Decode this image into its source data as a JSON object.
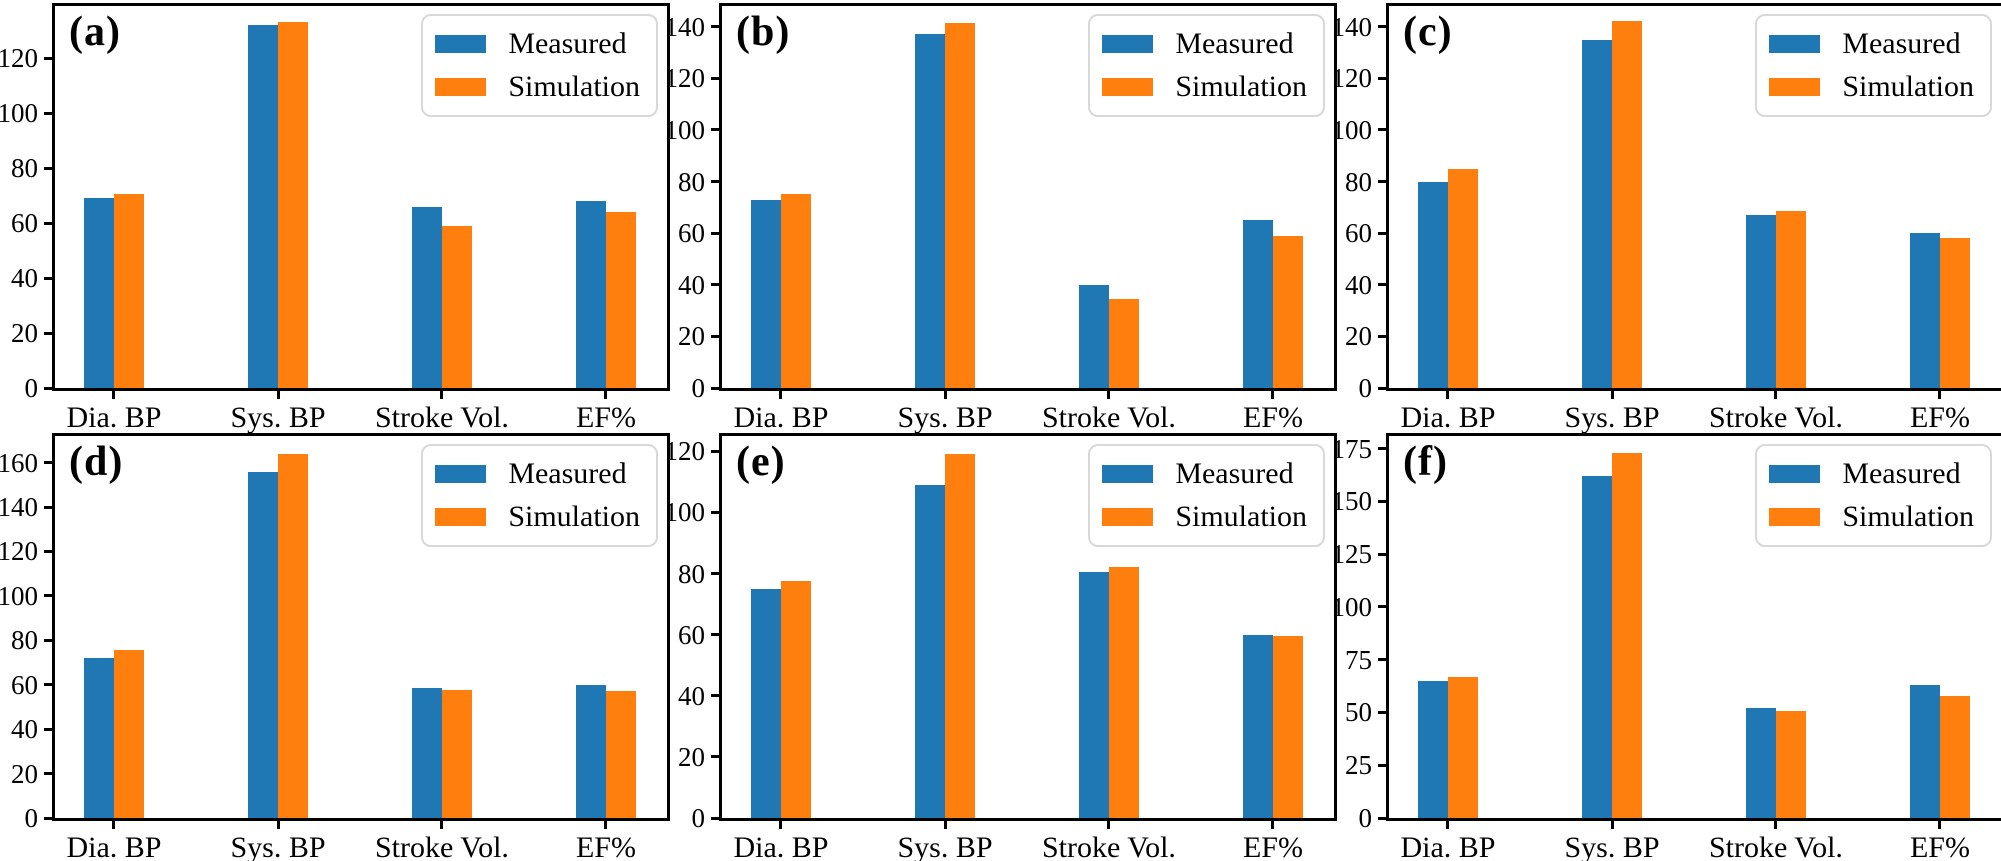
{
  "figure": {
    "background": "#ffffff",
    "series_labels": [
      "Measured",
      "Simulation"
    ],
    "series_colors": [
      "#1f77b4",
      "#ff7f0e"
    ],
    "legend_border_color": "#d8d8d8",
    "axis_color": "#000000"
  },
  "chart_data": [
    {
      "type": "bar",
      "label": "(a)",
      "categories": [
        "Dia. BP",
        "Sys. BP",
        "Stroke Vol.",
        "EF%"
      ],
      "series": [
        {
          "name": "Measured",
          "color": "#1f77b4",
          "values": [
            69,
            132,
            66,
            68
          ]
        },
        {
          "name": "Simulation",
          "color": "#ff7f0e",
          "values": [
            70.5,
            133,
            59,
            64
          ]
        }
      ],
      "yticks": [
        0,
        20,
        40,
        60,
        80,
        100,
        120
      ],
      "ylim": [
        0,
        139
      ],
      "grid": false,
      "legend_position": "upper right"
    },
    {
      "type": "bar",
      "label": "(b)",
      "categories": [
        "Dia. BP",
        "Sys. BP",
        "Stroke Vol.",
        "EF%"
      ],
      "series": [
        {
          "name": "Measured",
          "color": "#1f77b4",
          "values": [
            73,
            137,
            40,
            65
          ]
        },
        {
          "name": "Simulation",
          "color": "#ff7f0e",
          "values": [
            75,
            141.5,
            34.5,
            59
          ]
        }
      ],
      "yticks": [
        0,
        20,
        40,
        60,
        80,
        100,
        120,
        140
      ],
      "ylim": [
        0,
        148
      ],
      "grid": false,
      "legend_position": "upper right"
    },
    {
      "type": "bar",
      "label": "(c)",
      "categories": [
        "Dia. BP",
        "Sys. BP",
        "Stroke Vol.",
        "EF%"
      ],
      "series": [
        {
          "name": "Measured",
          "color": "#1f77b4",
          "values": [
            80,
            135,
            67,
            60
          ]
        },
        {
          "name": "Simulation",
          "color": "#ff7f0e",
          "values": [
            85,
            142,
            68.5,
            58
          ]
        }
      ],
      "yticks": [
        0,
        20,
        40,
        60,
        80,
        100,
        120,
        140
      ],
      "ylim": [
        0,
        148
      ],
      "grid": false,
      "legend_position": "upper right"
    },
    {
      "type": "bar",
      "label": "(d)",
      "categories": [
        "Dia. BP",
        "Sys. BP",
        "Stroke Vol.",
        "EF%"
      ],
      "series": [
        {
          "name": "Measured",
          "color": "#1f77b4",
          "values": [
            72,
            156,
            58.5,
            60
          ]
        },
        {
          "name": "Simulation",
          "color": "#ff7f0e",
          "values": [
            75.5,
            164,
            57.5,
            57
          ]
        }
      ],
      "yticks": [
        0,
        20,
        40,
        60,
        80,
        100,
        120,
        140,
        160
      ],
      "ylim": [
        0,
        172
      ],
      "grid": false,
      "legend_position": "upper right"
    },
    {
      "type": "bar",
      "label": "(e)",
      "categories": [
        "Dia. BP",
        "Sys. BP",
        "Stroke Vol.",
        "EF%"
      ],
      "series": [
        {
          "name": "Measured",
          "color": "#1f77b4",
          "values": [
            75,
            109,
            80.5,
            60
          ]
        },
        {
          "name": "Simulation",
          "color": "#ff7f0e",
          "values": [
            77.5,
            119,
            82,
            59.5
          ]
        }
      ],
      "yticks": [
        0,
        20,
        40,
        60,
        80,
        100,
        120
      ],
      "ylim": [
        0,
        125
      ],
      "grid": false,
      "legend_position": "upper right"
    },
    {
      "type": "bar",
      "label": "(f)",
      "categories": [
        "Dia. BP",
        "Sys. BP",
        "Stroke Vol.",
        "EF%"
      ],
      "series": [
        {
          "name": "Measured",
          "color": "#1f77b4",
          "values": [
            65,
            162,
            52,
            63
          ]
        },
        {
          "name": "Simulation",
          "color": "#ff7f0e",
          "values": [
            67,
            173,
            50.5,
            58
          ]
        }
      ],
      "yticks": [
        0,
        25,
        50,
        75,
        100,
        125,
        150,
        175
      ],
      "ylim": [
        0,
        181
      ],
      "grid": false,
      "legend_position": "upper right"
    }
  ]
}
